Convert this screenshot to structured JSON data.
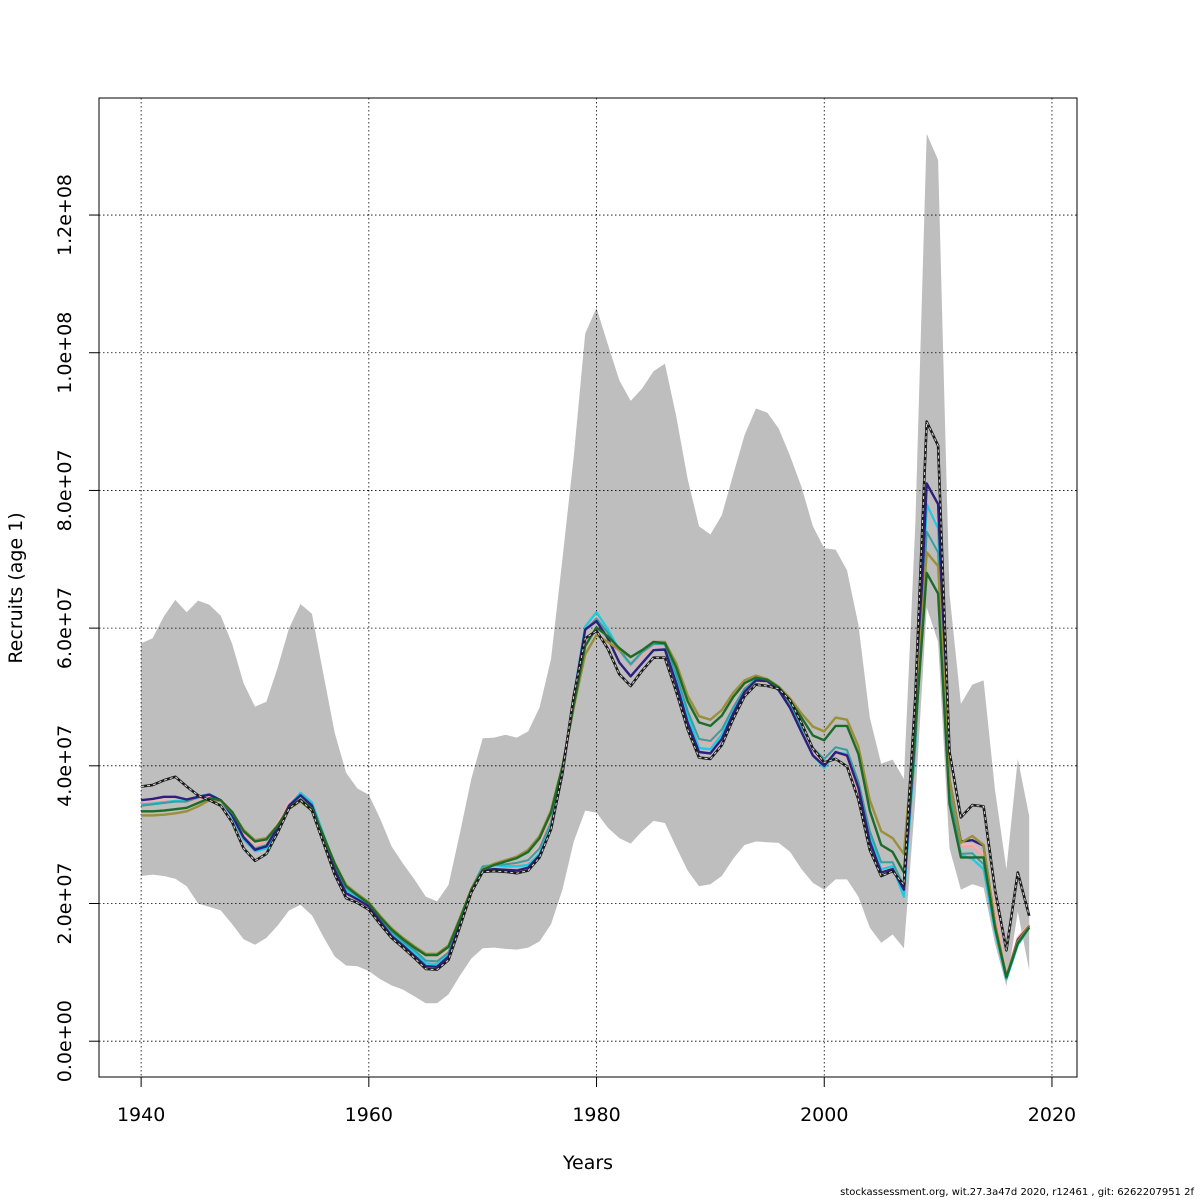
{
  "chart_data": {
    "type": "line",
    "xlabel": "Years",
    "ylabel": "Recruits (age 1)",
    "xlim": [
      1936.3,
      2022.2
    ],
    "ylim": [
      -5200000,
      137000000
    ],
    "x_ticks": [
      1940,
      1960,
      1980,
      2000,
      2020
    ],
    "x_tick_labels": [
      "1940",
      "1960",
      "1980",
      "2000",
      "2020"
    ],
    "y_ticks": [
      0,
      20000000,
      40000000,
      60000000,
      80000000,
      100000000,
      120000000
    ],
    "y_tick_labels": [
      "0.0e+00",
      "2.0e+07",
      "4.0e+07",
      "6.0e+07",
      "8.0e+07",
      "1.0e+08",
      "1.2e+08"
    ],
    "grid": true,
    "years": [
      1940,
      1941,
      1942,
      1943,
      1944,
      1945,
      1946,
      1947,
      1948,
      1949,
      1950,
      1951,
      1952,
      1953,
      1954,
      1955,
      1956,
      1957,
      1958,
      1959,
      1960,
      1961,
      1962,
      1963,
      1964,
      1965,
      1966,
      1967,
      1968,
      1969,
      1970,
      1971,
      1972,
      1973,
      1974,
      1975,
      1976,
      1977,
      1978,
      1979,
      1980,
      1981,
      1982,
      1983,
      1984,
      1985,
      1986,
      1987,
      1988,
      1989,
      1990,
      1991,
      1992,
      1993,
      1994,
      1995,
      1996,
      1997,
      1998,
      1999,
      2000,
      2001,
      2002,
      2003,
      2004,
      2005,
      2006,
      2007,
      2008,
      2009,
      2010,
      2011,
      2012,
      2013,
      2014,
      2015,
      2016,
      2017,
      2018
    ],
    "band": {
      "upper": [
        57800000,
        58500000,
        61700000,
        64100000,
        62300000,
        64000000,
        63400000,
        61800000,
        57700000,
        52000000,
        48600000,
        49300000,
        54300000,
        60000000,
        63500000,
        62100000,
        53400000,
        44800000,
        39000000,
        36700000,
        35800000,
        32300000,
        28300000,
        25800000,
        23500000,
        21000000,
        20300000,
        22700000,
        30200000,
        38100000,
        44000000,
        44100000,
        44500000,
        44100000,
        45000000,
        48500000,
        55500000,
        70000000,
        85000000,
        102800000,
        106500000,
        101200000,
        96000000,
        93000000,
        94800000,
        97300000,
        98400000,
        90800000,
        81700000,
        74800000,
        73600000,
        76400000,
        82300000,
        88000000,
        91900000,
        91300000,
        89000000,
        85000000,
        80500000,
        74800000,
        71600000,
        71400000,
        68400000,
        60500000,
        47000000,
        40300000,
        40900000,
        38100000,
        75000000,
        131800000,
        128000000,
        65000000,
        49000000,
        51800000,
        52400000,
        36500000,
        25000000,
        41000000,
        32700000
      ],
      "lower": [
        24000000,
        24200000,
        24000000,
        23600000,
        22500000,
        20000000,
        19500000,
        19000000,
        17000000,
        14800000,
        14000000,
        15000000,
        16800000,
        19000000,
        19800000,
        18300000,
        15200000,
        12300000,
        11000000,
        10900000,
        10200000,
        9000000,
        8100000,
        7500000,
        6500000,
        5500000,
        5500000,
        6800000,
        9500000,
        12000000,
        13500000,
        13600000,
        13400000,
        13300000,
        13600000,
        14500000,
        17000000,
        22000000,
        29000000,
        33500000,
        33200000,
        31000000,
        29500000,
        28700000,
        30500000,
        32000000,
        31700000,
        28200000,
        24800000,
        22500000,
        22800000,
        24000000,
        26500000,
        28500000,
        29000000,
        28900000,
        28800000,
        27500000,
        25000000,
        23000000,
        22000000,
        23500000,
        23500000,
        21000000,
        16500000,
        14300000,
        15500000,
        13500000,
        35000000,
        63000000,
        58000000,
        28000000,
        22000000,
        22800000,
        22300000,
        14200000,
        8000000,
        18800000,
        10300000
      ]
    },
    "series": [
      {
        "color": "#f8b4b4",
        "dashed": false,
        "values": [
          34800000,
          34900000,
          35000000,
          35100000,
          34900000,
          35400000,
          35800000,
          35200000,
          33300000,
          30300000,
          28500000,
          29200000,
          31600000,
          34700000,
          36200000,
          34800000,
          30000000,
          25700000,
          21900000,
          20800000,
          19600000,
          17700000,
          15900000,
          14500000,
          13100000,
          11700000,
          11600000,
          13200000,
          17700000,
          22400000,
          25300000,
          25700000,
          25800000,
          25800000,
          26300000,
          28400000,
          32600000,
          40000000,
          50000000,
          60000000,
          61700000,
          59500000,
          56800000,
          54600000,
          56200000,
          57700000,
          57700000,
          53200000,
          48000000,
          43800000,
          43400000,
          45300000,
          48700000,
          51400000,
          52800000,
          52400000,
          51200000,
          49000000,
          45700000,
          42500000,
          40300000,
          42000000,
          41500000,
          36400000,
          29300000,
          25300000,
          25200000,
          22300000,
          44000000,
          78000000,
          75000000,
          38000000,
          28500000,
          28600000,
          27000000,
          19000000,
          9500000,
          15000000,
          17000000
        ],
        "width": 2.4
      },
      {
        "color": "#f4a6a6",
        "dashed": false,
        "values": [
          34600000,
          34700000,
          34800000,
          34900000,
          34700000,
          35200000,
          35600000,
          35000000,
          33100000,
          30100000,
          28300000,
          29000000,
          31400000,
          34500000,
          36000000,
          34600000,
          29800000,
          25500000,
          21700000,
          20600000,
          19400000,
          17500000,
          15700000,
          14300000,
          12900000,
          11500000,
          11400000,
          13000000,
          17500000,
          22200000,
          25100000,
          25500000,
          25600000,
          25600000,
          26100000,
          28200000,
          32400000,
          39800000,
          49800000,
          59800000,
          61500000,
          59300000,
          56600000,
          54400000,
          56000000,
          57500000,
          57500000,
          53000000,
          47800000,
          43600000,
          43200000,
          45100000,
          48500000,
          51200000,
          52600000,
          52200000,
          51000000,
          48800000,
          45500000,
          42300000,
          40100000,
          41800000,
          41300000,
          36200000,
          29100000,
          25100000,
          25000000,
          22100000,
          43600000,
          77600000,
          74600000,
          37800000,
          28300000,
          28400000,
          26800000,
          18800000,
          9300000,
          14800000,
          16800000
        ],
        "width": 2
      },
      {
        "color": "#1ecbe1",
        "dashed": false,
        "values": [
          34400000,
          34500000,
          34700000,
          34900000,
          34900000,
          35500000,
          35900000,
          35000000,
          32600000,
          29300000,
          27600000,
          28000000,
          30800000,
          34200000,
          36100000,
          34700000,
          30100000,
          25600000,
          22000000,
          20900000,
          19700000,
          17600000,
          15700000,
          14200000,
          12900000,
          11300000,
          11200000,
          12500000,
          17100000,
          22100000,
          25400000,
          25600000,
          25400000,
          25400000,
          25600000,
          27200000,
          31000000,
          39000000,
          50000000,
          60200000,
          62300000,
          59800000,
          56800000,
          54700000,
          56500000,
          57700000,
          57700000,
          53000000,
          47400000,
          42600000,
          42400000,
          44500000,
          48200000,
          51000000,
          52700000,
          52400000,
          51000000,
          48500000,
          45000000,
          41500000,
          39700000,
          41900000,
          41700000,
          37500000,
          30000000,
          25000000,
          25400000,
          21000000,
          43000000,
          78000000,
          74500000,
          36000000,
          27000000,
          26500000,
          25000000,
          16000000,
          9000000,
          14000000,
          16500000
        ],
        "width": 2.4
      },
      {
        "color": "#3a9e9e",
        "dashed": false,
        "values": [
          34200000,
          34400000,
          34600000,
          34800000,
          34800000,
          35400000,
          35800000,
          35000000,
          32800000,
          29700000,
          28000000,
          28500000,
          31100000,
          34300000,
          35800000,
          34400000,
          30000000,
          25600000,
          22300000,
          21100000,
          19900000,
          17800000,
          15900000,
          14500000,
          13200000,
          11700000,
          11600000,
          12900000,
          17400000,
          22200000,
          25300000,
          25600000,
          25700000,
          25900000,
          26300000,
          28000000,
          31800000,
          39400000,
          50000000,
          59700000,
          61400000,
          59300000,
          56800000,
          54800000,
          56500000,
          57700000,
          57700000,
          53300000,
          48000000,
          43900000,
          43600000,
          45300000,
          48500000,
          51200000,
          52500000,
          52400000,
          51200000,
          49000000,
          45700000,
          42600000,
          41000000,
          42700000,
          42300000,
          37700000,
          30500000,
          26000000,
          26000000,
          22500000,
          43000000,
          74000000,
          71000000,
          36000000,
          27200000,
          27300000,
          25700000,
          16500000,
          9500000,
          14500000,
          16800000
        ],
        "width": 2
      },
      {
        "color": "#2e1f7e",
        "dashed": false,
        "values": [
          35000000,
          35200000,
          35500000,
          35500000,
          35100000,
          35500000,
          35800000,
          35000000,
          32800000,
          29600000,
          27800000,
          28300000,
          31000000,
          34200000,
          35700000,
          34200000,
          29500000,
          24900000,
          21500000,
          20600000,
          19600000,
          17400000,
          15300000,
          13900000,
          12400000,
          10900000,
          10800000,
          12300000,
          17000000,
          22000000,
          24800000,
          25000000,
          24900000,
          24800000,
          25200000,
          27000000,
          30800000,
          38800000,
          50000000,
          59800000,
          61000000,
          58500000,
          55000000,
          53000000,
          54900000,
          56800000,
          56900000,
          52000000,
          46300000,
          42000000,
          41800000,
          43900000,
          47600000,
          50700000,
          52400000,
          52300000,
          51000000,
          48400000,
          44900000,
          41500000,
          40000000,
          42000000,
          41500000,
          36800000,
          29000000,
          24500000,
          25000000,
          22000000,
          45000000,
          81000000,
          78000000,
          38000000,
          29000000,
          29200000,
          28400000,
          17000000,
          9300000,
          14700000,
          16700000
        ],
        "width": 2.4
      },
      {
        "color": "#9b8f3a",
        "dashed": false,
        "values": [
          32800000,
          32800000,
          32900000,
          33100000,
          33400000,
          34100000,
          35000000,
          34900000,
          33200000,
          30700000,
          29200000,
          29500000,
          31400000,
          33800000,
          34800000,
          33500000,
          29800000,
          25900000,
          22700000,
          21400000,
          20200000,
          18200000,
          16400000,
          15000000,
          13800000,
          12700000,
          12700000,
          13900000,
          17900000,
          22100000,
          25000000,
          25800000,
          26300000,
          26800000,
          27800000,
          29800000,
          33500000,
          40000000,
          48500000,
          56200000,
          59000000,
          58000000,
          56800000,
          55800000,
          56800000,
          58000000,
          58000000,
          54900000,
          50200000,
          47200000,
          46700000,
          48100000,
          50600000,
          52400000,
          53100000,
          52600000,
          51500000,
          49800000,
          47600000,
          45700000,
          45000000,
          47000000,
          46700000,
          42800000,
          35000000,
          30500000,
          29500000,
          27200000,
          47000000,
          71000000,
          69000000,
          38000000,
          28800000,
          29800000,
          28500000,
          17000000,
          9500000,
          14500000,
          16700000
        ],
        "width": 2.4
      },
      {
        "color": "#1d6b2a",
        "dashed": false,
        "values": [
          33400000,
          33400000,
          33500000,
          33700000,
          33900000,
          34600000,
          35300000,
          35000000,
          33300000,
          30500000,
          29000000,
          29300000,
          31300000,
          33900000,
          35100000,
          33800000,
          29900000,
          25800000,
          22500000,
          21200000,
          20000000,
          18000000,
          16200000,
          14800000,
          13600000,
          12500000,
          12500000,
          13700000,
          17700000,
          22000000,
          24900000,
          25600000,
          26100000,
          26600000,
          27500000,
          29500000,
          33200000,
          39800000,
          48900000,
          57400000,
          60100000,
          58800000,
          57100000,
          55800000,
          56800000,
          58000000,
          57800000,
          54300000,
          49400000,
          46300000,
          45800000,
          47300000,
          50000000,
          52000000,
          52800000,
          52500000,
          51400000,
          49400000,
          47000000,
          44400000,
          43700000,
          45800000,
          45800000,
          41700000,
          33500000,
          28500000,
          27500000,
          24500000,
          45000000,
          68000000,
          65000000,
          34500000,
          26700000,
          26700000,
          26700000,
          16500000,
          9300000,
          14200000,
          16500000
        ],
        "width": 2.4
      },
      {
        "color": "#1a1a1a",
        "dashed": true,
        "values": [
          37000000,
          37200000,
          37900000,
          38400000,
          37000000,
          35700000,
          35000000,
          34200000,
          31800000,
          28000000,
          26200000,
          27200000,
          30300000,
          33800000,
          35000000,
          33500000,
          28900000,
          24200000,
          20800000,
          20100000,
          19100000,
          17000000,
          15000000,
          13600000,
          12100000,
          10500000,
          10400000,
          11800000,
          16600000,
          21600000,
          24600000,
          24700000,
          24600000,
          24400000,
          24800000,
          26700000,
          30800000,
          39000000,
          50200000,
          58500000,
          59600000,
          57000000,
          53300000,
          51600000,
          53800000,
          55700000,
          55700000,
          50800000,
          45300000,
          41200000,
          41000000,
          43000000,
          46800000,
          50100000,
          51800000,
          51600000,
          51200000,
          49500000,
          46200000,
          42500000,
          40500000,
          41000000,
          39900000,
          35100000,
          27800000,
          24000000,
          24700000,
          22700000,
          50000000,
          90000000,
          86500000,
          42000000,
          32500000,
          34300000,
          34100000,
          22000000,
          13200000,
          24500000,
          18200000
        ],
        "width": 2.6
      }
    ]
  },
  "footer": "stockassessment.org, wit.27.3a47d   2020, r12461 , git: 6262207951 2f"
}
